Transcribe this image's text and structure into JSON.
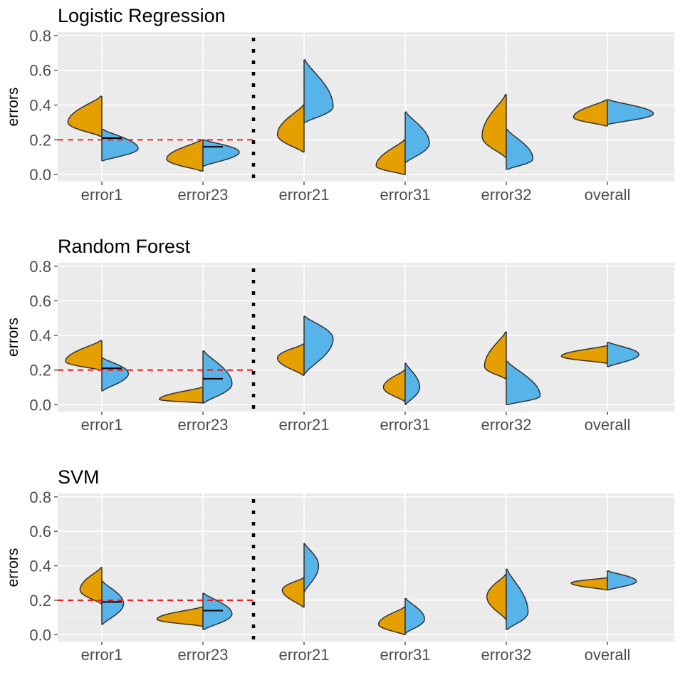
{
  "chart_data": [
    {
      "type": "split-violin",
      "title": "Logistic Regression",
      "ylabel": "errors",
      "ylim": [
        -0.04,
        0.82
      ],
      "yticks": [
        0.0,
        0.2,
        0.4,
        0.6,
        0.8
      ],
      "ytick_labels": [
        "0.0",
        "0.2",
        "0.4",
        "0.6",
        "0.8"
      ],
      "categories": [
        "error1",
        "error23",
        "error21",
        "error31",
        "error32",
        "overall"
      ],
      "reference_line": 0.2,
      "separator_after_index": 1,
      "violins": [
        {
          "left": {
            "min": 0.22,
            "max": 0.45,
            "mode": 0.3,
            "width": 0.7
          },
          "right": {
            "min": 0.08,
            "max": 0.26,
            "mode": 0.15,
            "width": 0.75
          },
          "median_right": 0.21
        },
        {
          "left": {
            "min": 0.02,
            "max": 0.2,
            "mode": 0.09,
            "width": 0.75
          },
          "right": {
            "min": 0.05,
            "max": 0.2,
            "mode": 0.13,
            "width": 0.75
          },
          "median_right": 0.16
        },
        {
          "left": {
            "min": 0.13,
            "max": 0.4,
            "mode": 0.23,
            "width": 0.55
          },
          "right": {
            "min": 0.3,
            "max": 0.66,
            "mode": 0.39,
            "width": 0.6
          }
        },
        {
          "left": {
            "min": 0.0,
            "max": 0.2,
            "mode": 0.05,
            "width": 0.6
          },
          "right": {
            "min": 0.07,
            "max": 0.36,
            "mode": 0.18,
            "width": 0.5
          }
        },
        {
          "left": {
            "min": 0.1,
            "max": 0.46,
            "mode": 0.22,
            "width": 0.5
          },
          "right": {
            "min": 0.03,
            "max": 0.26,
            "mode": 0.09,
            "width": 0.55
          }
        },
        {
          "left": {
            "min": 0.28,
            "max": 0.43,
            "mode": 0.33,
            "width": 0.7
          },
          "right": {
            "min": 0.29,
            "max": 0.43,
            "mode": 0.35,
            "width": 0.95
          }
        }
      ]
    },
    {
      "type": "split-violin",
      "title": "Random Forest",
      "ylabel": "errors",
      "ylim": [
        -0.04,
        0.82
      ],
      "yticks": [
        0.0,
        0.2,
        0.4,
        0.6,
        0.8
      ],
      "ytick_labels": [
        "0.0",
        "0.2",
        "0.4",
        "0.6",
        "0.8"
      ],
      "categories": [
        "error1",
        "error23",
        "error21",
        "error31",
        "error32",
        "overall"
      ],
      "reference_line": 0.2,
      "separator_after_index": 1,
      "violins": [
        {
          "left": {
            "min": 0.2,
            "max": 0.37,
            "mode": 0.25,
            "width": 0.75
          },
          "right": {
            "min": 0.08,
            "max": 0.27,
            "mode": 0.18,
            "width": 0.55
          },
          "median_right": 0.21
        },
        {
          "left": {
            "min": 0.01,
            "max": 0.1,
            "mode": 0.03,
            "width": 0.9
          },
          "right": {
            "min": 0.01,
            "max": 0.31,
            "mode": 0.12,
            "width": 0.6
          },
          "median_right": 0.15
        },
        {
          "left": {
            "min": 0.17,
            "max": 0.35,
            "mode": 0.27,
            "width": 0.55
          },
          "right": {
            "min": 0.18,
            "max": 0.51,
            "mode": 0.38,
            "width": 0.6
          }
        },
        {
          "left": {
            "min": 0.02,
            "max": 0.2,
            "mode": 0.1,
            "width": 0.45
          },
          "right": {
            "min": 0.0,
            "max": 0.24,
            "mode": 0.1,
            "width": 0.3
          }
        },
        {
          "left": {
            "min": 0.15,
            "max": 0.42,
            "mode": 0.22,
            "width": 0.45
          },
          "right": {
            "min": 0.0,
            "max": 0.25,
            "mode": 0.05,
            "width": 0.7
          }
        },
        {
          "left": {
            "min": 0.24,
            "max": 0.34,
            "mode": 0.28,
            "width": 0.95
          },
          "right": {
            "min": 0.22,
            "max": 0.36,
            "mode": 0.29,
            "width": 0.65
          }
        }
      ]
    },
    {
      "type": "split-violin",
      "title": "SVM",
      "ylabel": "errors",
      "ylim": [
        -0.04,
        0.82
      ],
      "yticks": [
        0.0,
        0.2,
        0.4,
        0.6,
        0.8
      ],
      "ytick_labels": [
        "0.0",
        "0.2",
        "0.4",
        "0.6",
        "0.8"
      ],
      "categories": [
        "error1",
        "error23",
        "error21",
        "error31",
        "error32",
        "overall"
      ],
      "reference_line": 0.2,
      "separator_after_index": 1,
      "violins": [
        {
          "left": {
            "min": 0.18,
            "max": 0.39,
            "mode": 0.26,
            "width": 0.45
          },
          "right": {
            "min": 0.06,
            "max": 0.31,
            "mode": 0.18,
            "width": 0.45
          },
          "median_right": 0.19
        },
        {
          "left": {
            "min": 0.05,
            "max": 0.16,
            "mode": 0.09,
            "width": 0.95
          },
          "right": {
            "min": 0.03,
            "max": 0.24,
            "mode": 0.12,
            "width": 0.6
          },
          "median_right": 0.14
        },
        {
          "left": {
            "min": 0.16,
            "max": 0.33,
            "mode": 0.26,
            "width": 0.45
          },
          "right": {
            "min": 0.25,
            "max": 0.53,
            "mode": 0.4,
            "width": 0.3
          }
        },
        {
          "left": {
            "min": 0.0,
            "max": 0.16,
            "mode": 0.06,
            "width": 0.55
          },
          "right": {
            "min": 0.01,
            "max": 0.21,
            "mode": 0.09,
            "width": 0.4
          }
        },
        {
          "left": {
            "min": 0.09,
            "max": 0.35,
            "mode": 0.22,
            "width": 0.4
          },
          "right": {
            "min": 0.03,
            "max": 0.38,
            "mode": 0.13,
            "width": 0.45
          }
        },
        {
          "left": {
            "min": 0.26,
            "max": 0.33,
            "mode": 0.3,
            "width": 0.75
          },
          "right": {
            "min": 0.26,
            "max": 0.37,
            "mode": 0.31,
            "width": 0.6
          }
        }
      ]
    }
  ],
  "colors": {
    "left_fill": "#E69F00",
    "right_fill": "#56B4E9",
    "reference_line": "#FF0000",
    "panel_background": "#EBEBEB"
  }
}
